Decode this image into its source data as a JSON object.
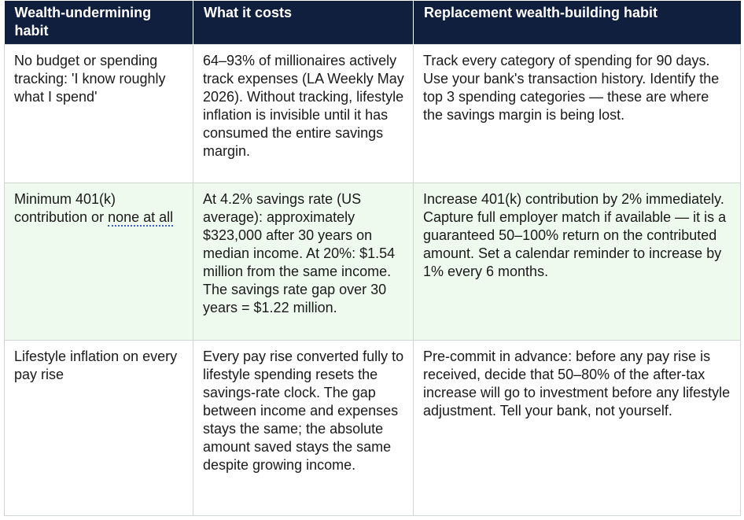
{
  "headers": [
    "Wealth-undermining habit",
    "What it costs",
    "Replacement wealth-building habit"
  ],
  "rows": [
    {
      "habit": "No budget or spending tracking: 'I know roughly what I spend'",
      "cost": "64–93% of millionaires actively track expenses (LA Weekly May 2026). Without tracking, lifestyle inflation is invisible until it has consumed the entire savings margin.",
      "replacement": "Track every category of spending for 90 days. Use your bank's transaction history. Identify the top 3 spending categories — these are where the savings margin is being lost."
    },
    {
      "habit_prefix": "Minimum 401(k) contribution or ",
      "habit_link": "none at all",
      "cost": "At 4.2% savings rate (US average): approximately $323,000 after 30 years on median income. At 20%: $1.54 million from the same income. The savings rate gap over 30 years = $1.22 million.",
      "replacement": "Increase 401(k) contribution by 2% immediately. Capture full employer match if available — it is a guaranteed 50–100% return on the contributed amount. Set a calendar reminder to increase by 1% every 6 months."
    },
    {
      "habit": "Lifestyle inflation on every pay rise",
      "cost": "Every pay rise converted fully to lifestyle spending resets the savings-rate clock. The gap between income and expenses stays the same; the absolute amount saved stays the same despite growing income.",
      "replacement": "Pre-commit in advance: before any pay rise is received, decide that 50–80% of the after-tax increase will go to investment before any lifestyle adjustment. Tell your bank, not yourself."
    }
  ]
}
